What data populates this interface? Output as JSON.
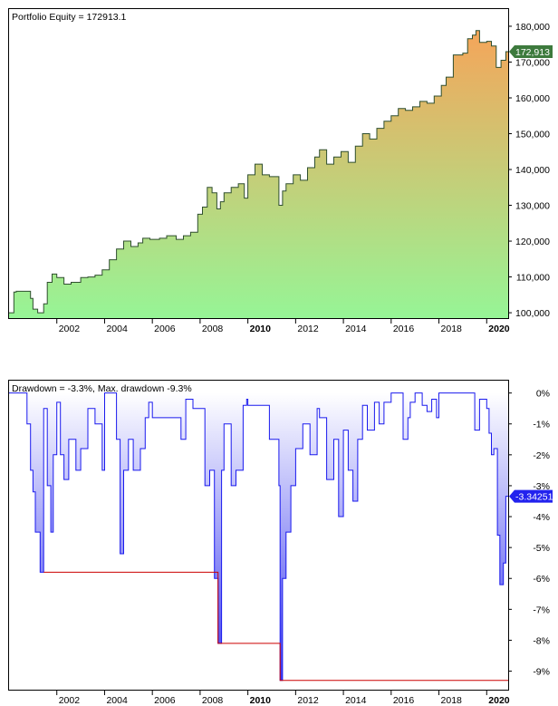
{
  "colors": {
    "equity_top": "#f5a55a",
    "equity_bottom": "#96f596",
    "equity_line": "#2f4f2f",
    "equity_badge": "#3d7a3d",
    "dd_top": "#ffffff",
    "dd_bottom": "#3c3cf0",
    "dd_line": "#1a1aee",
    "maxdd_line": "#cc0000",
    "dd_badge": "#2222ee"
  },
  "chart_data": [
    {
      "type": "area",
      "title": "Portfolio Equity = 172913.1",
      "badge": "172,913",
      "last_value": 172913.1,
      "ylim": [
        98500,
        184800
      ],
      "xlim": [
        2000.0,
        2020.9
      ],
      "grid": false,
      "x_ticks": [
        {
          "value": 2002,
          "label": "2002",
          "bold": false
        },
        {
          "value": 2004,
          "label": "2004",
          "bold": false
        },
        {
          "value": 2006,
          "label": "2006",
          "bold": false
        },
        {
          "value": 2008,
          "label": "2008",
          "bold": false
        },
        {
          "value": 2010,
          "label": "2010",
          "bold": true
        },
        {
          "value": 2012,
          "label": "2012",
          "bold": false
        },
        {
          "value": 2014,
          "label": "2014",
          "bold": false
        },
        {
          "value": 2016,
          "label": "2016",
          "bold": false
        },
        {
          "value": 2018,
          "label": "2018",
          "bold": false
        },
        {
          "value": 2020,
          "label": "2020",
          "bold": true
        }
      ],
      "y_ticks": [
        {
          "value": 100000,
          "label": "100,000"
        },
        {
          "value": 110000,
          "label": "110,000"
        },
        {
          "value": 120000,
          "label": "120,000"
        },
        {
          "value": 130000,
          "label": "130,000"
        },
        {
          "value": 140000,
          "label": "140,000"
        },
        {
          "value": 150000,
          "label": "150,000"
        },
        {
          "value": 160000,
          "label": "160,000"
        },
        {
          "value": 170000,
          "label": "170,000"
        },
        {
          "value": 180000,
          "label": "180,000"
        }
      ],
      "x": [
        2000.0,
        2000.2,
        2000.3,
        2000.9,
        2001.0,
        2001.2,
        2001.45,
        2001.6,
        2001.8,
        2002.0,
        2002.3,
        2002.6,
        2003.0,
        2003.3,
        2003.6,
        2003.9,
        2004.2,
        2004.5,
        2004.8,
        2005.1,
        2005.4,
        2005.6,
        2005.9,
        2006.3,
        2006.6,
        2007.0,
        2007.3,
        2007.6,
        2007.9,
        2008.1,
        2008.3,
        2008.5,
        2008.7,
        2008.85,
        2009.0,
        2009.3,
        2009.6,
        2009.85,
        2010.0,
        2010.3,
        2010.6,
        2010.9,
        2011.1,
        2011.3,
        2011.45,
        2011.6,
        2011.9,
        2012.2,
        2012.5,
        2012.8,
        2013.0,
        2013.3,
        2013.6,
        2013.9,
        2014.2,
        2014.5,
        2014.8,
        2015.1,
        2015.4,
        2015.7,
        2016.0,
        2016.3,
        2016.6,
        2016.9,
        2017.2,
        2017.5,
        2017.8,
        2018.1,
        2018.3,
        2018.6,
        2018.9,
        2019.0,
        2019.2,
        2019.4,
        2019.55,
        2019.7,
        2020.0,
        2020.2,
        2020.4,
        2020.6,
        2020.8
      ],
      "y": [
        100000,
        105800,
        106000,
        104000,
        101000,
        100000,
        102500,
        108500,
        110800,
        109800,
        108000,
        108500,
        109800,
        110000,
        110500,
        112000,
        114800,
        117800,
        120000,
        118500,
        119500,
        120800,
        120500,
        120800,
        121500,
        120500,
        121500,
        122500,
        127500,
        129500,
        135000,
        133500,
        129000,
        131000,
        133500,
        135000,
        136000,
        132000,
        138500,
        141500,
        138500,
        138000,
        138000,
        130000,
        134000,
        136000,
        138500,
        137000,
        140500,
        143500,
        145500,
        141500,
        143500,
        145000,
        142000,
        146500,
        150000,
        148500,
        151500,
        153500,
        155000,
        157000,
        156500,
        157500,
        159000,
        158500,
        160500,
        163500,
        165800,
        172000,
        172000,
        172500,
        176500,
        177500,
        178800,
        175500,
        175800,
        174500,
        168500,
        170500,
        172913
      ]
    },
    {
      "type": "area",
      "title": "Drawdown = -3.3%, Max. drawdown -9.3%",
      "badge": "-3.34251",
      "last_value": -3.34251,
      "ylim": [
        -9.6,
        0.4
      ],
      "xlim": [
        2000.0,
        2020.9
      ],
      "grid": false,
      "x_ticks": [
        {
          "value": 2002,
          "label": "2002",
          "bold": false
        },
        {
          "value": 2004,
          "label": "2004",
          "bold": false
        },
        {
          "value": 2006,
          "label": "2006",
          "bold": false
        },
        {
          "value": 2008,
          "label": "2008",
          "bold": false
        },
        {
          "value": 2010,
          "label": "2010",
          "bold": true
        },
        {
          "value": 2012,
          "label": "2012",
          "bold": false
        },
        {
          "value": 2014,
          "label": "2014",
          "bold": false
        },
        {
          "value": 2016,
          "label": "2016",
          "bold": false
        },
        {
          "value": 2018,
          "label": "2018",
          "bold": false
        },
        {
          "value": 2020,
          "label": "2020",
          "bold": true
        }
      ],
      "y_ticks": [
        {
          "value": 0,
          "label": "0%"
        },
        {
          "value": -1,
          "label": "-1%"
        },
        {
          "value": -2,
          "label": "-2%"
        },
        {
          "value": -3,
          "label": "-3%"
        },
        {
          "value": -4,
          "label": "-4%"
        },
        {
          "value": -5,
          "label": "-5%"
        },
        {
          "value": -6,
          "label": "-6%"
        },
        {
          "value": -7,
          "label": "-7%"
        },
        {
          "value": -8,
          "label": "-8%"
        },
        {
          "value": -9,
          "label": "-9%"
        }
      ],
      "x": [
        2000.0,
        2000.7,
        2000.75,
        2000.9,
        2001.0,
        2001.1,
        2001.3,
        2001.45,
        2001.6,
        2001.75,
        2001.85,
        2002.0,
        2002.15,
        2002.3,
        2002.5,
        2002.8,
        2003.0,
        2003.3,
        2003.6,
        2003.9,
        2004.0,
        2004.2,
        2004.5,
        2004.65,
        2004.8,
        2005.0,
        2005.2,
        2005.5,
        2005.7,
        2005.85,
        2006.0,
        2006.5,
        2007.0,
        2007.2,
        2007.4,
        2007.7,
        2008.0,
        2008.2,
        2008.4,
        2008.6,
        2008.75,
        2008.9,
        2009.0,
        2009.3,
        2009.5,
        2009.8,
        2009.95,
        2010.0,
        2010.5,
        2010.9,
        2011.3,
        2011.35,
        2011.45,
        2011.6,
        2011.8,
        2012.0,
        2012.3,
        2012.6,
        2012.9,
        2013.0,
        2013.3,
        2013.6,
        2013.8,
        2014.0,
        2014.2,
        2014.4,
        2014.6,
        2014.8,
        2015.0,
        2015.3,
        2015.5,
        2015.7,
        2016.0,
        2016.3,
        2016.5,
        2016.7,
        2016.8,
        2017.0,
        2017.3,
        2017.5,
        2017.7,
        2017.9,
        2018.0,
        2018.5,
        2019.0,
        2019.2,
        2019.5,
        2019.7,
        2020.0,
        2020.1,
        2020.2,
        2020.3,
        2020.45,
        2020.55,
        2020.7,
        2020.8
      ],
      "y": [
        0,
        0,
        -1.0,
        -2.5,
        -3.2,
        -4.5,
        -5.8,
        -0.5,
        -3.0,
        -4.5,
        -2.0,
        -0.3,
        -2.0,
        -2.8,
        -1.5,
        -2.5,
        -1.8,
        -0.5,
        -1.0,
        -2.5,
        0,
        0,
        -1.5,
        -5.2,
        -2.5,
        -1.5,
        -2.5,
        -1.8,
        -0.8,
        -0.3,
        -0.8,
        -0.8,
        -0.8,
        -1.5,
        -0.2,
        -0.5,
        -0.5,
        -3.0,
        -2.5,
        -6.0,
        -8.1,
        -2.5,
        -1.0,
        -3.0,
        -2.5,
        -0.4,
        -0.2,
        -0.4,
        -0.4,
        -1.5,
        -3.0,
        -9.3,
        -6.0,
        -4.5,
        -3.0,
        -1.8,
        -1.0,
        -2.0,
        -0.5,
        -0.8,
        -2.8,
        -1.5,
        -4.0,
        -1.2,
        -2.5,
        -3.5,
        -1.5,
        -0.4,
        -1.2,
        -0.3,
        -1.0,
        -0.3,
        0,
        0,
        -1.5,
        -0.8,
        -0.3,
        0,
        -0.4,
        -0.6,
        -0.2,
        -0.8,
        0,
        0,
        0,
        0,
        -1.2,
        -0.2,
        -0.5,
        -1.3,
        -2.0,
        -1.8,
        -4.6,
        -6.2,
        -5.5,
        -3.34251
      ],
      "max_drawdown_steps": [
        {
          "x0": 2001.45,
          "x1": 2008.75,
          "y": -5.8
        },
        {
          "x0": 2008.75,
          "x1": 2011.35,
          "y": -8.1
        },
        {
          "x0": 2011.35,
          "x1": 2020.9,
          "y": -9.3
        }
      ]
    }
  ]
}
